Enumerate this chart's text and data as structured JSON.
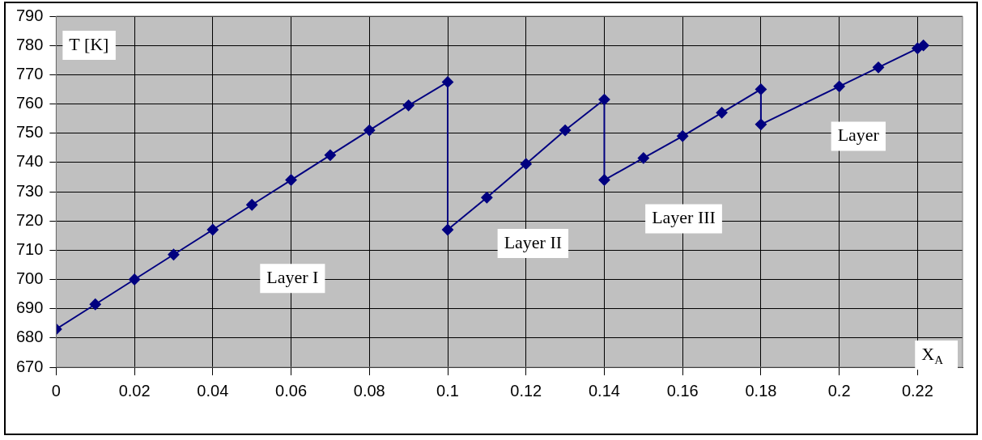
{
  "chart_data": {
    "type": "line",
    "xlabel": "X$_{A}$",
    "ylabel": "T [K]",
    "x": [
      0,
      0.01,
      0.02,
      0.03,
      0.04,
      0.05,
      0.06,
      0.07,
      0.08,
      0.09,
      0.1,
      0.1,
      0.11,
      0.12,
      0.13,
      0.14,
      0.14,
      0.15,
      0.16,
      0.17,
      0.18,
      0.18,
      0.2,
      0.21,
      0.22,
      0.2215
    ],
    "series": [
      {
        "color": "#000080",
        "values": [
          683,
          691.5,
          700,
          708.5,
          717,
          725.5,
          734,
          742.5,
          751,
          759.5,
          767.5,
          717,
          728,
          739.5,
          751,
          761.5,
          734,
          741.5,
          749,
          757,
          765,
          753,
          766,
          772.5,
          779,
          780
        ]
      }
    ],
    "xlim": [
      0,
      0.2315
    ],
    "xticks": [
      0,
      0.02,
      0.04,
      0.06,
      0.08,
      0.1,
      0.12,
      0.14,
      0.16,
      0.18,
      0.2,
      0.22
    ],
    "ylim": [
      670,
      790
    ],
    "yticks": [
      670,
      680,
      690,
      700,
      710,
      720,
      730,
      740,
      750,
      760,
      770,
      780,
      790
    ],
    "grid": true,
    "marker": "diamond",
    "line_style": "solid",
    "annotations": [
      "Layer I",
      "Layer II",
      "Layer III",
      "Layer"
    ]
  }
}
